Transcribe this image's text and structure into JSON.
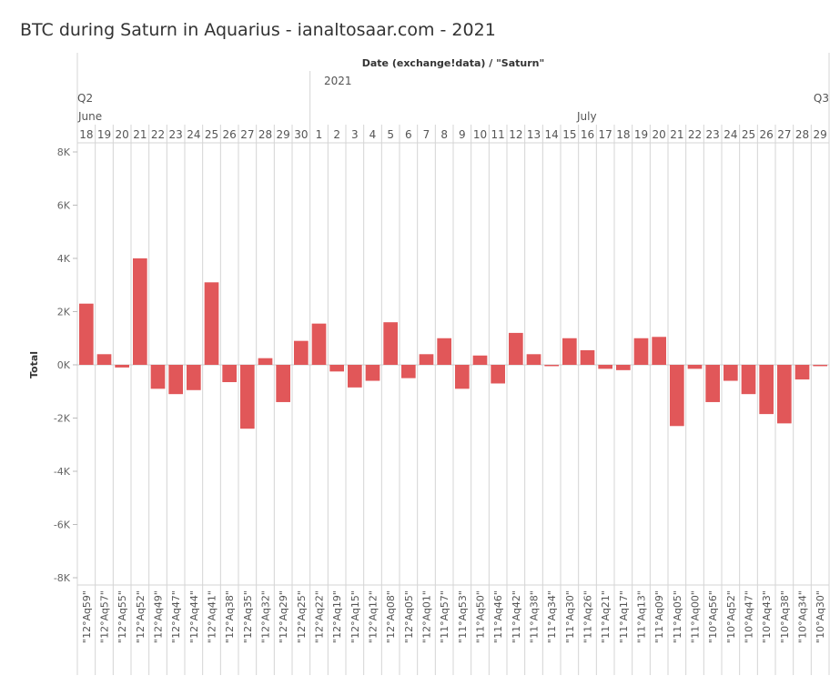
{
  "title": "BTC during Saturn in Aquarius - ianaltosaar.com - 2021",
  "chart_data": {
    "type": "bar",
    "header_label": "Date (exchange!data) / \"Saturn\"",
    "year_label": "2021",
    "quarter_labels": [
      "Q2",
      "Q3"
    ],
    "month_labels": [
      "June",
      "July"
    ],
    "days": [
      "18",
      "19",
      "20",
      "21",
      "22",
      "23",
      "24",
      "25",
      "26",
      "27",
      "28",
      "29",
      "30",
      "1",
      "2",
      "3",
      "4",
      "5",
      "6",
      "7",
      "8",
      "9",
      "10",
      "11",
      "12",
      "13",
      "14",
      "15",
      "16",
      "17",
      "18",
      "19",
      "20",
      "21",
      "22",
      "23",
      "24",
      "25",
      "26",
      "27",
      "28",
      "29"
    ],
    "categories": [
      "\"12°Aq59\"",
      "\"12°Aq57\"",
      "\"12°Aq55\"",
      "\"12°Aq52\"",
      "\"12°Aq49\"",
      "\"12°Aq47\"",
      "\"12°Aq44\"",
      "\"12°Aq41\"",
      "\"12°Aq38\"",
      "\"12°Aq35\"",
      "\"12°Aq32\"",
      "\"12°Aq29\"",
      "\"12°Aq25\"",
      "\"12°Aq22\"",
      "\"12°Aq19\"",
      "\"12°Aq15\"",
      "\"12°Aq12\"",
      "\"12°Aq08\"",
      "\"12°Aq05\"",
      "\"12°Aq01\"",
      "\"11°Aq57\"",
      "\"11°Aq53\"",
      "\"11°Aq50\"",
      "\"11°Aq46\"",
      "\"11°Aq42\"",
      "\"11°Aq38\"",
      "\"11°Aq34\"",
      "\"11°Aq30\"",
      "\"11°Aq26\"",
      "\"11°Aq21\"",
      "\"11°Aq17\"",
      "\"11°Aq13\"",
      "\"11°Aq09\"",
      "\"11°Aq05\"",
      "\"11°Aq00\"",
      "\"10°Aq56\"",
      "\"10°Aq52\"",
      "\"10°Aq47\"",
      "\"10°Aq43\"",
      "\"10°Aq38\"",
      "\"10°Aq34\"",
      "\"10°Aq30\""
    ],
    "values": [
      2300,
      400,
      -100,
      4000,
      -900,
      -1100,
      -950,
      3100,
      -650,
      -2400,
      250,
      -1400,
      900,
      1550,
      -250,
      -850,
      -600,
      1600,
      -500,
      400,
      1000,
      -900,
      350,
      -700,
      1200,
      400,
      -50,
      1000,
      550,
      -150,
      -200,
      1000,
      1050,
      -2300,
      -150,
      -1400,
      -600,
      -1100,
      -1850,
      -2200,
      -550,
      -50
    ],
    "ylabel": "Total",
    "ylim": [
      -8000,
      8000
    ],
    "yticks": [
      8000,
      6000,
      4000,
      2000,
      0,
      -2000,
      -4000,
      -6000,
      -8000
    ],
    "ytick_labels": [
      "8K",
      "6K",
      "4K",
      "2K",
      "0K",
      "-2K",
      "-4K",
      "-6K",
      "-8K"
    ],
    "bar_color": "#e15759",
    "grid": false
  }
}
